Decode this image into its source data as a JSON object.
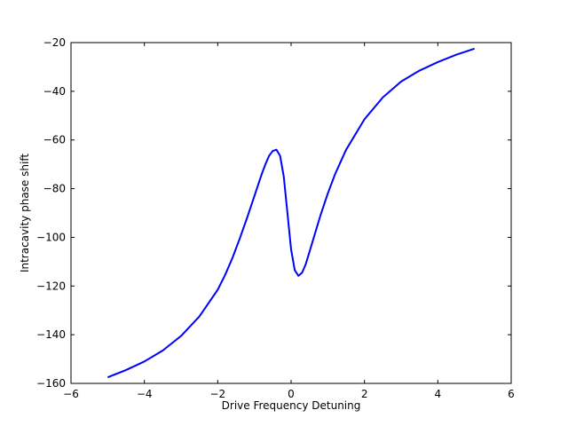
{
  "chart_data": {
    "type": "line",
    "title": "",
    "xlabel": "Drive Frequency Detuning",
    "ylabel": "Intracavity phase shift",
    "xlim": [
      -6,
      6
    ],
    "ylim": [
      -160,
      -20
    ],
    "xticks": [
      -6,
      -4,
      -2,
      0,
      2,
      4,
      6
    ],
    "yticks": [
      -160,
      -140,
      -120,
      -100,
      -80,
      -60,
      -40,
      -20
    ],
    "xtick_labels": [
      "−6",
      "−4",
      "−2",
      "0",
      "2",
      "4",
      "6"
    ],
    "ytick_labels": [
      "−160",
      "−140",
      "−120",
      "−100",
      "−80",
      "−60",
      "−40",
      "−20"
    ],
    "grid": false,
    "legend": "none",
    "series": [
      {
        "color": "#0000ff",
        "x": [
          -5.0,
          -4.5,
          -4.0,
          -3.5,
          -3.0,
          -2.5,
          -2.0,
          -1.8,
          -1.6,
          -1.4,
          -1.2,
          -1.0,
          -0.9,
          -0.8,
          -0.7,
          -0.6,
          -0.5,
          -0.4,
          -0.3,
          -0.2,
          -0.1,
          0.0,
          0.1,
          0.2,
          0.3,
          0.4,
          0.5,
          0.6,
          0.8,
          1.0,
          1.2,
          1.5,
          2.0,
          2.5,
          3.0,
          3.5,
          4.0,
          4.5,
          5.0
        ],
        "y": [
          -157.5,
          -154.5,
          -151.0,
          -146.5,
          -140.5,
          -132.5,
          -121.5,
          -115.5,
          -108.5,
          -100.5,
          -92.0,
          -83.0,
          -78.5,
          -74.0,
          -70.0,
          -66.5,
          -64.5,
          -64.0,
          -66.5,
          -75.0,
          -90.0,
          -105.0,
          -113.5,
          -115.8,
          -114.5,
          -111.0,
          -106.0,
          -101.0,
          -91.0,
          -82.0,
          -74.0,
          -64.0,
          -51.5,
          -42.5,
          -36.0,
          -31.5,
          -28.0,
          -25.0,
          -22.5
        ]
      }
    ]
  }
}
